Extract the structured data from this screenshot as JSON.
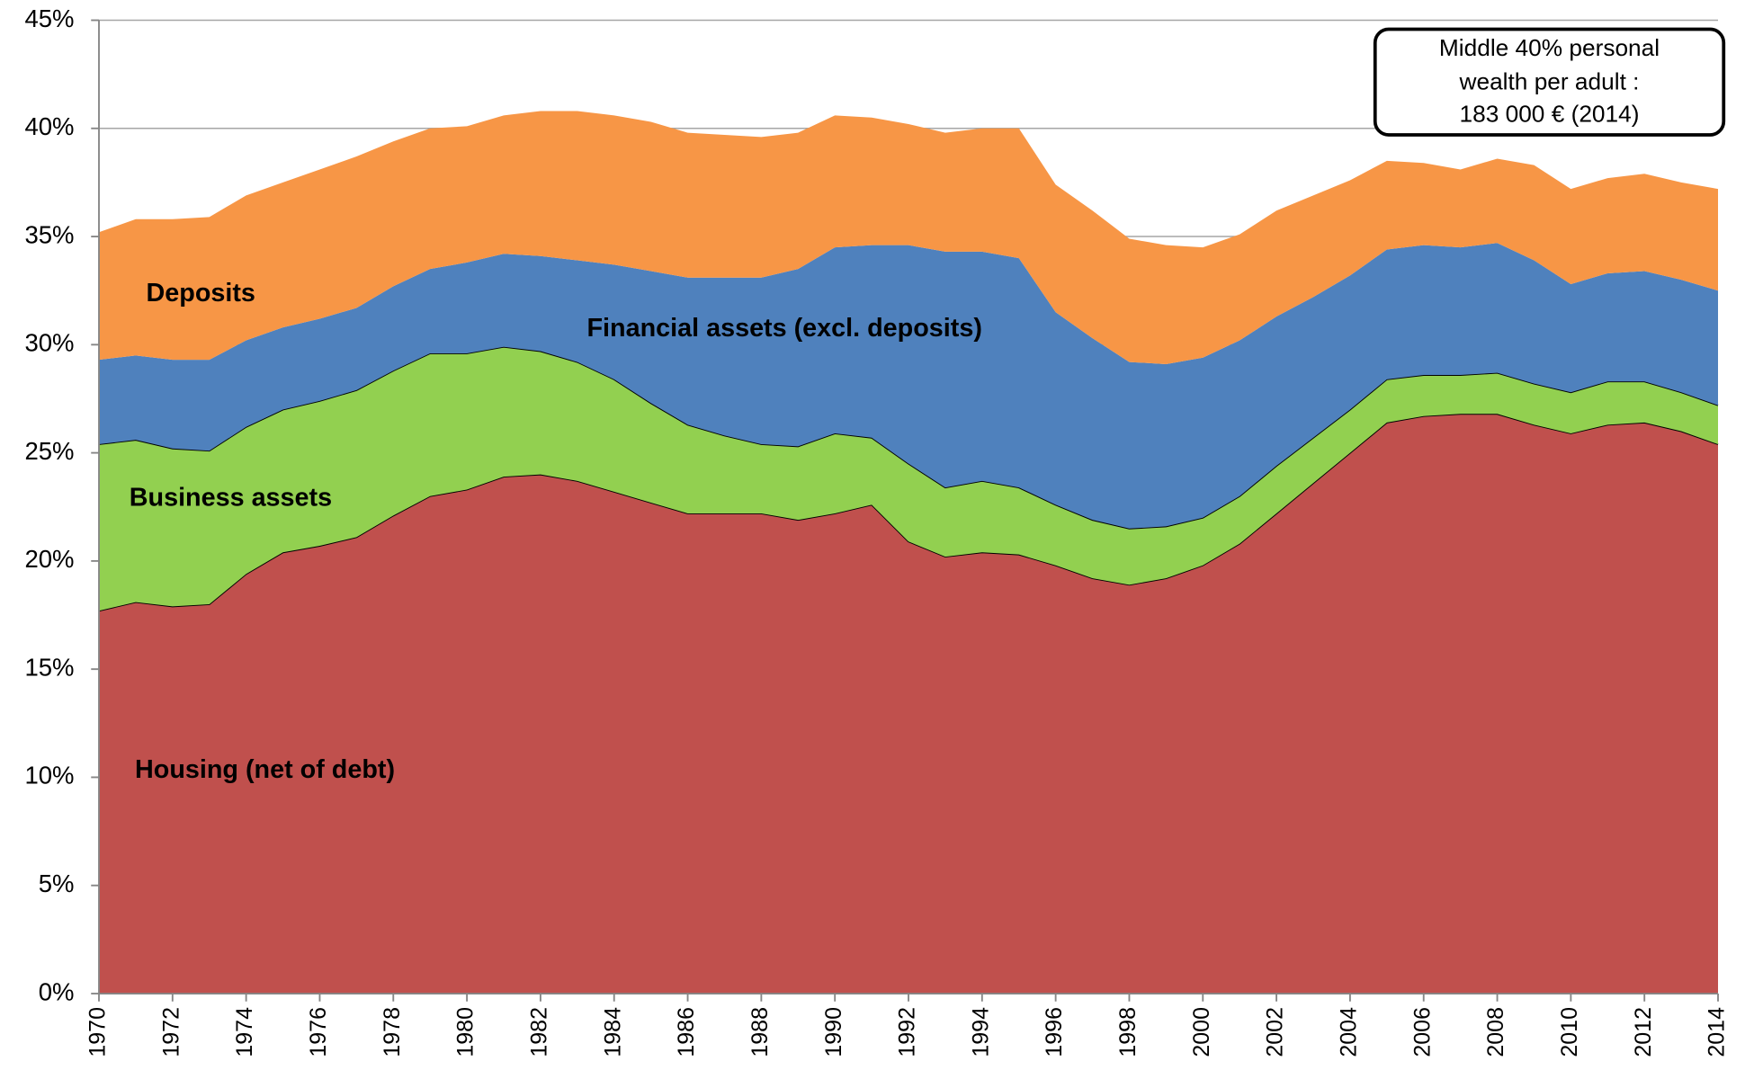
{
  "chart_data": {
    "type": "stacked_area",
    "x": [
      1970,
      1971,
      1972,
      1973,
      1974,
      1975,
      1976,
      1977,
      1978,
      1979,
      1980,
      1981,
      1982,
      1983,
      1984,
      1985,
      1986,
      1987,
      1988,
      1989,
      1990,
      1991,
      1992,
      1993,
      1994,
      1995,
      1996,
      1997,
      1998,
      1999,
      2000,
      2001,
      2002,
      2003,
      2004,
      2005,
      2006,
      2007,
      2008,
      2009,
      2010,
      2011,
      2012,
      2013,
      2014
    ],
    "xlim": [
      1970,
      2014
    ],
    "xticks": [
      1970,
      1972,
      1974,
      1976,
      1978,
      1980,
      1982,
      1984,
      1986,
      1988,
      1990,
      1992,
      1994,
      1996,
      1998,
      2000,
      2002,
      2004,
      2006,
      2008,
      2010,
      2012,
      2014
    ],
    "ylim": [
      0,
      45
    ],
    "yticks": [
      {
        "value": 0,
        "label": "0%"
      },
      {
        "value": 5,
        "label": "5%"
      },
      {
        "value": 10,
        "label": "10%"
      },
      {
        "value": 15,
        "label": "15%"
      },
      {
        "value": 20,
        "label": "20%"
      },
      {
        "value": 25,
        "label": "25%"
      },
      {
        "value": 30,
        "label": "30%"
      },
      {
        "value": 35,
        "label": "35%"
      },
      {
        "value": 40,
        "label": "40%"
      },
      {
        "value": 45,
        "label": "45%"
      }
    ],
    "grid": true,
    "series": [
      {
        "name": "Housing (net of debt)",
        "color": "#c0504d",
        "values": [
          17.7,
          18.1,
          17.9,
          18.0,
          19.4,
          20.4,
          20.7,
          21.1,
          22.1,
          23.0,
          23.3,
          23.9,
          24.0,
          23.7,
          23.2,
          22.7,
          22.2,
          22.2,
          22.2,
          21.9,
          22.2,
          22.6,
          20.9,
          20.2,
          20.4,
          20.3,
          19.8,
          19.2,
          18.9,
          19.2,
          19.8,
          20.8,
          22.2,
          23.6,
          25.0,
          26.4,
          26.7,
          26.8,
          26.8,
          26.3,
          25.9,
          26.3,
          26.4,
          26.0,
          25.4
        ]
      },
      {
        "name": "Business assets",
        "color": "#92d050",
        "values": [
          7.7,
          7.5,
          7.3,
          7.1,
          6.8,
          6.6,
          6.7,
          6.8,
          6.7,
          6.6,
          6.3,
          6.0,
          5.7,
          5.5,
          5.2,
          4.6,
          4.1,
          3.6,
          3.2,
          3.4,
          3.7,
          3.1,
          3.6,
          3.2,
          3.3,
          3.1,
          2.8,
          2.7,
          2.6,
          2.4,
          2.2,
          2.2,
          2.2,
          2.1,
          2.0,
          2.0,
          1.9,
          1.8,
          1.9,
          1.9,
          1.9,
          2.0,
          1.9,
          1.8,
          1.8
        ]
      },
      {
        "name": "Financial assets  (excl. deposits)",
        "color": "#4f81bd",
        "values": [
          3.9,
          3.9,
          4.1,
          4.2,
          4.0,
          3.8,
          3.8,
          3.8,
          3.9,
          3.9,
          4.2,
          4.3,
          4.4,
          4.7,
          5.3,
          6.1,
          6.8,
          7.3,
          7.7,
          8.2,
          8.6,
          8.9,
          10.1,
          10.9,
          10.6,
          10.6,
          8.9,
          8.4,
          7.7,
          7.5,
          7.4,
          7.2,
          6.9,
          6.5,
          6.2,
          6.0,
          6.0,
          5.9,
          6.0,
          5.7,
          5.0,
          5.0,
          5.1,
          5.2,
          5.3
        ]
      },
      {
        "name": "Deposits",
        "color": "#f79646",
        "values": [
          5.9,
          6.3,
          6.5,
          6.6,
          6.7,
          6.7,
          6.9,
          7.0,
          6.7,
          6.5,
          6.3,
          6.4,
          6.7,
          6.9,
          6.9,
          6.9,
          6.7,
          6.6,
          6.5,
          6.3,
          6.1,
          5.9,
          5.6,
          5.5,
          5.7,
          6.0,
          5.9,
          5.9,
          5.7,
          5.5,
          5.1,
          4.9,
          4.9,
          4.7,
          4.4,
          4.1,
          3.8,
          3.6,
          3.9,
          4.4,
          4.4,
          4.4,
          4.5,
          4.5,
          4.7
        ]
      }
    ],
    "annotation": [
      "Middle 40% personal",
      "wealth per adult :",
      "183 000 € (2014)"
    ]
  }
}
